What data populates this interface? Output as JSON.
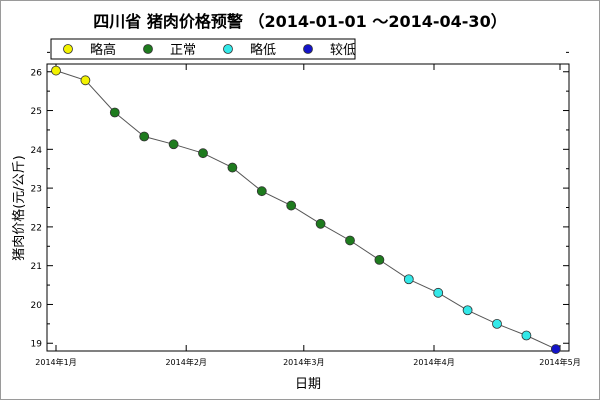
{
  "chart_data": {
    "type": "scatter",
    "title": "四川省 猪肉价格预警 （2014-01-01 ～2014-04-30）",
    "xlabel": "日期",
    "ylabel": "猪肉价格(元/公斤)",
    "x_range": [
      "2014-01-01",
      "2014-05-01"
    ],
    "ylim": [
      18.8,
      26.2
    ],
    "y_ticks": [
      19,
      20,
      21,
      22,
      23,
      24,
      25,
      26
    ],
    "x_ticks": [
      {
        "date": "2014-01-01",
        "label": "2014年1月"
      },
      {
        "date": "2014-02-01",
        "label": "2014年2月"
      },
      {
        "date": "2014-03-01",
        "label": "2014年3月"
      },
      {
        "date": "2014-04-01",
        "label": "2014年4月"
      },
      {
        "date": "2014-05-01",
        "label": "2014年5月"
      }
    ],
    "grid": false,
    "legend_position": "top-left",
    "legend": [
      {
        "key": "slightly_high",
        "label": "略高",
        "color": "#f2f200"
      },
      {
        "key": "normal",
        "label": "正常",
        "color": "#1e7b1e"
      },
      {
        "key": "slightly_low",
        "label": "略低",
        "color": "#33e8e8"
      },
      {
        "key": "lower",
        "label": "较低",
        "color": "#1414c8"
      }
    ],
    "line_color": "#555555",
    "points": [
      {
        "date": "2014-01-01",
        "value": 26.03,
        "level": "slightly_high"
      },
      {
        "date": "2014-01-08",
        "value": 25.78,
        "level": "slightly_high"
      },
      {
        "date": "2014-01-15",
        "value": 24.95,
        "level": "normal"
      },
      {
        "date": "2014-01-22",
        "value": 24.33,
        "level": "normal"
      },
      {
        "date": "2014-01-29",
        "value": 24.13,
        "level": "normal"
      },
      {
        "date": "2014-02-05",
        "value": 23.9,
        "level": "normal"
      },
      {
        "date": "2014-02-12",
        "value": 23.53,
        "level": "normal"
      },
      {
        "date": "2014-02-19",
        "value": 22.92,
        "level": "normal"
      },
      {
        "date": "2014-02-26",
        "value": 22.55,
        "level": "normal"
      },
      {
        "date": "2014-03-05",
        "value": 22.08,
        "level": "normal"
      },
      {
        "date": "2014-03-12",
        "value": 21.65,
        "level": "normal"
      },
      {
        "date": "2014-03-19",
        "value": 21.15,
        "level": "normal"
      },
      {
        "date": "2014-03-26",
        "value": 20.65,
        "level": "slightly_low"
      },
      {
        "date": "2014-04-02",
        "value": 20.3,
        "level": "slightly_low"
      },
      {
        "date": "2014-04-09",
        "value": 19.85,
        "level": "slightly_low"
      },
      {
        "date": "2014-04-16",
        "value": 19.5,
        "level": "slightly_low"
      },
      {
        "date": "2014-04-23",
        "value": 19.2,
        "level": "slightly_low"
      },
      {
        "date": "2014-04-30",
        "value": 18.85,
        "level": "lower"
      }
    ]
  }
}
